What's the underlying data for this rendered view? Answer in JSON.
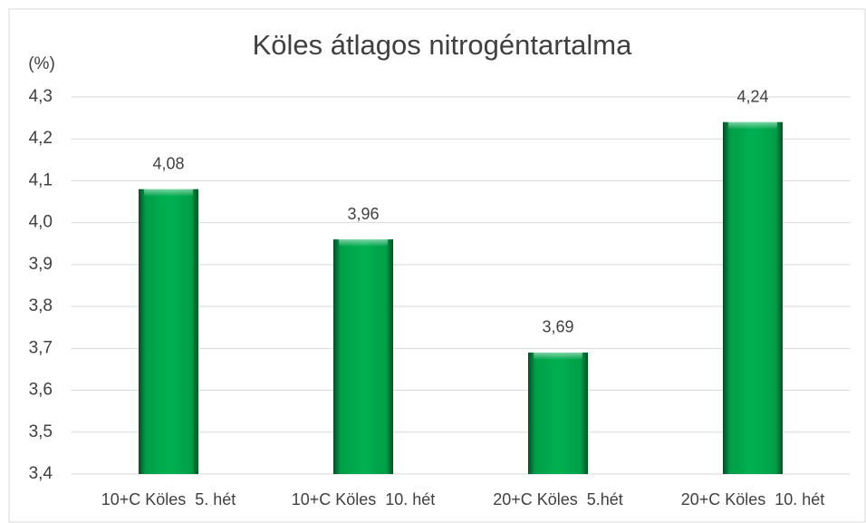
{
  "chart_data": {
    "type": "bar",
    "title": "Köles átlagos nitrogéntartalma",
    "y_label": "(%)",
    "categories": [
      "10+C Köles  5. hét",
      "10+C Köles  10. hét",
      "20+C Köles  5.hét",
      "20+C Köles  10. hét"
    ],
    "values": [
      4.08,
      3.96,
      3.69,
      4.24
    ],
    "value_labels": [
      "4,08",
      "3,96",
      "3,69",
      "4,24"
    ],
    "color": "#00b050",
    "ylim": [
      3.4,
      4.3
    ],
    "yticks": [
      {
        "value": 3.4,
        "label": "3,4"
      },
      {
        "value": 3.5,
        "label": "3,5"
      },
      {
        "value": 3.6,
        "label": "3,6"
      },
      {
        "value": 3.7,
        "label": "3,7"
      },
      {
        "value": 3.8,
        "label": "3,8"
      },
      {
        "value": 3.9,
        "label": "3,9"
      },
      {
        "value": 4.0,
        "label": "4,0"
      },
      {
        "value": 4.1,
        "label": "4,1"
      },
      {
        "value": 4.2,
        "label": "4,2"
      },
      {
        "value": 4.3,
        "label": "4,3"
      }
    ],
    "grid": true
  }
}
